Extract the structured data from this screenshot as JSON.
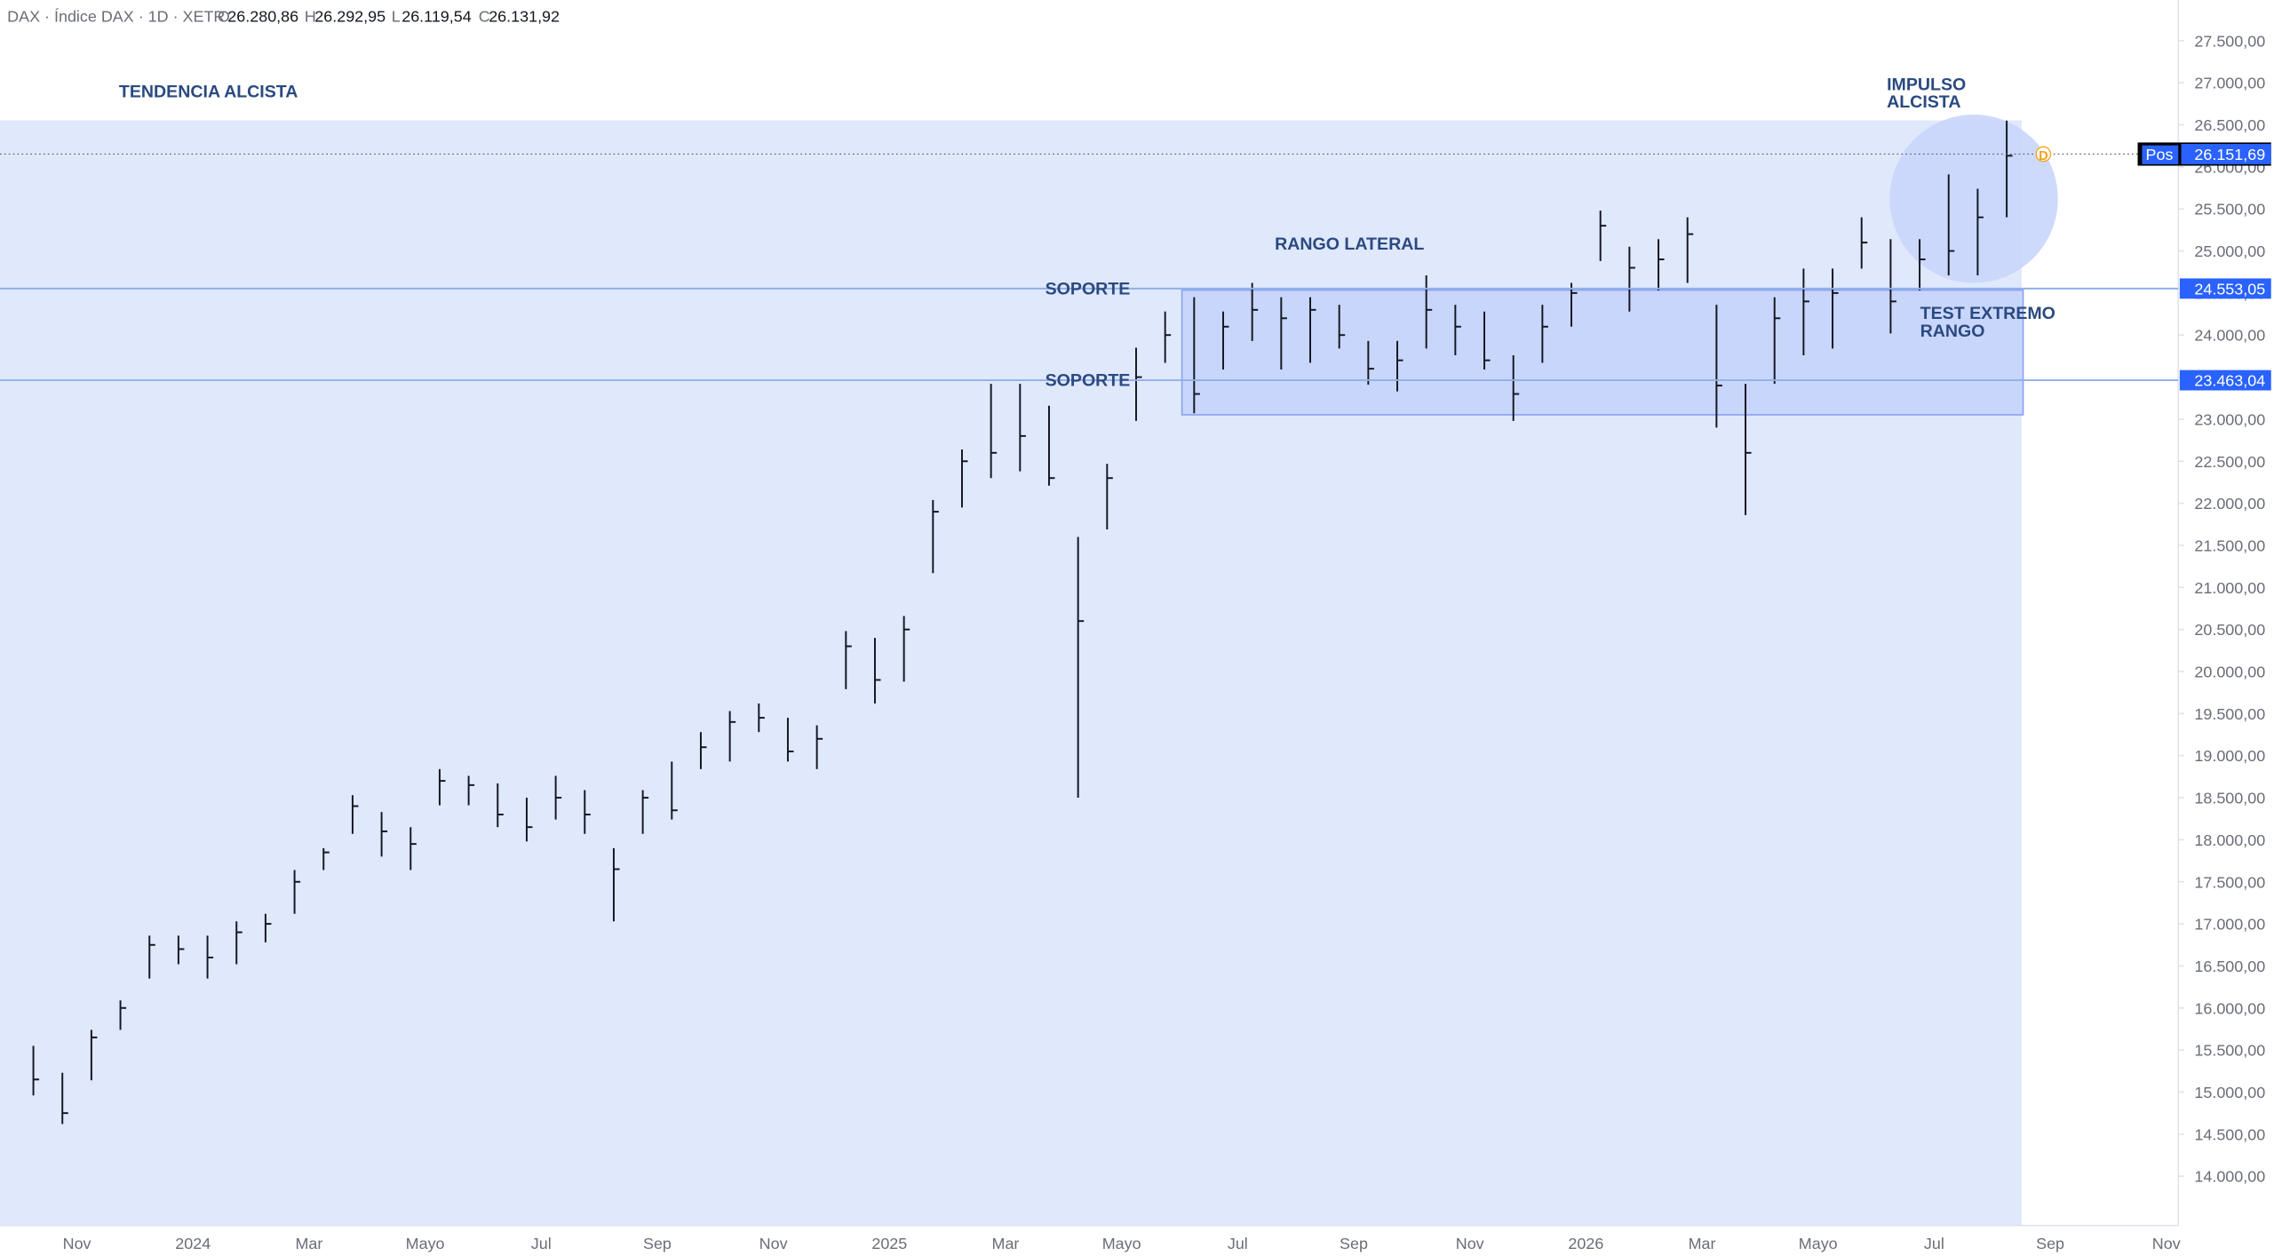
{
  "header": {
    "symbol": "DAX · Índice DAX · 1D · XETR",
    "ohlc": [
      {
        "key": "O",
        "value": "26.280,86"
      },
      {
        "key": "H",
        "value": "26.292,95"
      },
      {
        "key": "L",
        "value": "26.119,54"
      },
      {
        "key": "C",
        "value": "26.131,92"
      }
    ]
  },
  "chart_data": {
    "type": "ohlc",
    "color": "#131722",
    "categories": [
      null,
      null,
      "Nov",
      null,
      null,
      null,
      "2024",
      null,
      null,
      null,
      "Mar",
      null,
      null,
      null,
      "Mayo",
      null,
      null,
      null,
      "Jul",
      null,
      null,
      null,
      "Sep",
      null,
      null,
      null,
      "Nov",
      null,
      null,
      null,
      "2025",
      null,
      null,
      null,
      "Mar",
      null,
      null,
      null,
      "Mayo",
      null,
      null,
      null,
      "Jul",
      null,
      null,
      null,
      "Sep",
      null,
      null,
      null,
      "Nov",
      null,
      null,
      null,
      "2026",
      null,
      null,
      null,
      "Mar",
      null,
      null,
      null,
      "Mayo",
      null,
      null,
      null,
      "Jul",
      null,
      null,
      null,
      "Sep",
      null,
      null,
      null,
      "Nov",
      null
    ],
    "series": [
      {
        "name": "High",
        "values": [
          15550,
          15230,
          15740,
          16090,
          16860,
          16860,
          16860,
          17030,
          17120,
          17640,
          17900,
          18530,
          18330,
          18150,
          18840,
          18760,
          18670,
          18500,
          18760,
          18590,
          17900,
          18590,
          18930,
          19280,
          19530,
          19620,
          19450,
          19360,
          20480,
          20400,
          20660,
          22040,
          22640,
          23420,
          23420,
          23160,
          21600,
          22470,
          23850,
          24280,
          24450,
          24280,
          24620,
          24450,
          24450,
          24360,
          23930,
          23930,
          24710,
          24360,
          24280,
          23760,
          24360,
          24620,
          25480,
          25050,
          25140,
          25400,
          24360,
          23420,
          24450,
          24790,
          24790,
          25400,
          25140,
          25140,
          25910,
          25740,
          26550,
          null,
          null,
          null,
          null,
          null,
          null,
          null
        ]
      },
      {
        "name": "Low",
        "values": [
          14960,
          14620,
          15140,
          15740,
          16350,
          16520,
          16350,
          16520,
          16780,
          17120,
          17640,
          18070,
          17800,
          17640,
          18410,
          18410,
          18150,
          17980,
          18240,
          18070,
          17030,
          18070,
          18240,
          18840,
          18930,
          19280,
          18930,
          18840,
          19790,
          19620,
          19880,
          21170,
          21950,
          22300,
          22380,
          22210,
          18500,
          21690,
          22980,
          23670,
          23070,
          23590,
          23930,
          23590,
          23670,
          23840,
          23410,
          23330,
          23840,
          23760,
          23590,
          22980,
          23670,
          24100,
          24880,
          24280,
          24530,
          24620,
          22900,
          21860,
          23420,
          23760,
          23840,
          24790,
          24020,
          24530,
          24710,
          24710,
          25400,
          null,
          null,
          null,
          null,
          null,
          null,
          null
        ]
      },
      {
        "name": "Close",
        "values": [
          15150,
          14750,
          15650,
          16000,
          16750,
          16700,
          16600,
          16900,
          17000,
          17500,
          17850,
          18400,
          18100,
          17950,
          18700,
          18650,
          18300,
          18150,
          18500,
          18300,
          17650,
          18500,
          18350,
          19100,
          19400,
          19450,
          19050,
          19200,
          20300,
          19900,
          20500,
          21900,
          22500,
          22600,
          22800,
          22300,
          20600,
          22300,
          23500,
          24000,
          23300,
          24100,
          24300,
          24200,
          24300,
          24000,
          23600,
          23700,
          24300,
          24100,
          23700,
          23300,
          24100,
          24500,
          25300,
          24800,
          24900,
          25200,
          23400,
          22600,
          24200,
          24400,
          24500,
          25100,
          24400,
          24900,
          25000,
          25400,
          26131.92,
          null,
          null,
          null,
          null,
          null,
          null,
          null
        ]
      }
    ],
    "ylim": [
      13414,
      27983
    ],
    "yticks": [
      {
        "value": 14000,
        "label": "14.000,00"
      },
      {
        "value": 14500,
        "label": "14.500,00"
      },
      {
        "value": 15000,
        "label": "15.000,00"
      },
      {
        "value": 15500,
        "label": "15.500,00"
      },
      {
        "value": 16000,
        "label": "16.000,00"
      },
      {
        "value": 16500,
        "label": "16.500,00"
      },
      {
        "value": 17000,
        "label": "17.000,00"
      },
      {
        "value": 17500,
        "label": "17.500,00"
      },
      {
        "value": 18000,
        "label": "18.000,00"
      },
      {
        "value": 18500,
        "label": "18.500,00"
      },
      {
        "value": 19000,
        "label": "19.000,00"
      },
      {
        "value": 19500,
        "label": "19.500,00"
      },
      {
        "value": 20000,
        "label": "20.000,00"
      },
      {
        "value": 20500,
        "label": "20.500,00"
      },
      {
        "value": 21000,
        "label": "21.000,00"
      },
      {
        "value": 21500,
        "label": "21.500,00"
      },
      {
        "value": 22000,
        "label": "22.000,00"
      },
      {
        "value": 22500,
        "label": "22.500,00"
      },
      {
        "value": 23000,
        "label": "23.000,00"
      },
      {
        "value": 23500,
        "label": "23.500,00"
      },
      {
        "value": 24000,
        "label": "24.000,00"
      },
      {
        "value": 24500,
        "label": "24.500,00"
      },
      {
        "value": 25000,
        "label": "25.000,00"
      },
      {
        "value": 25500,
        "label": "25.500,00"
      },
      {
        "value": 26000,
        "label": "26.000,00"
      },
      {
        "value": 26500,
        "label": "26.500,00"
      },
      {
        "value": 27000,
        "label": "27.000,00"
      },
      {
        "value": 27500,
        "label": "27.500,00"
      }
    ],
    "levels": [
      {
        "value": 24553.05,
        "label": "24.553,05",
        "name": "SOPORTE"
      },
      {
        "value": 23463.04,
        "label": "23.463,04",
        "name": "SOPORTE"
      }
    ],
    "price_line": {
      "value": 26151.69,
      "label": "26.151,69",
      "tag": "Pos",
      "marker": "D"
    },
    "annotations": [
      [
        "TENDENCIA ALCISTA"
      ],
      [
        "RANGO LATERAL"
      ],
      [
        "IMPULSO",
        "ALCISTA"
      ],
      [
        "TEST EXTREMO",
        "RANGO"
      ]
    ]
  }
}
